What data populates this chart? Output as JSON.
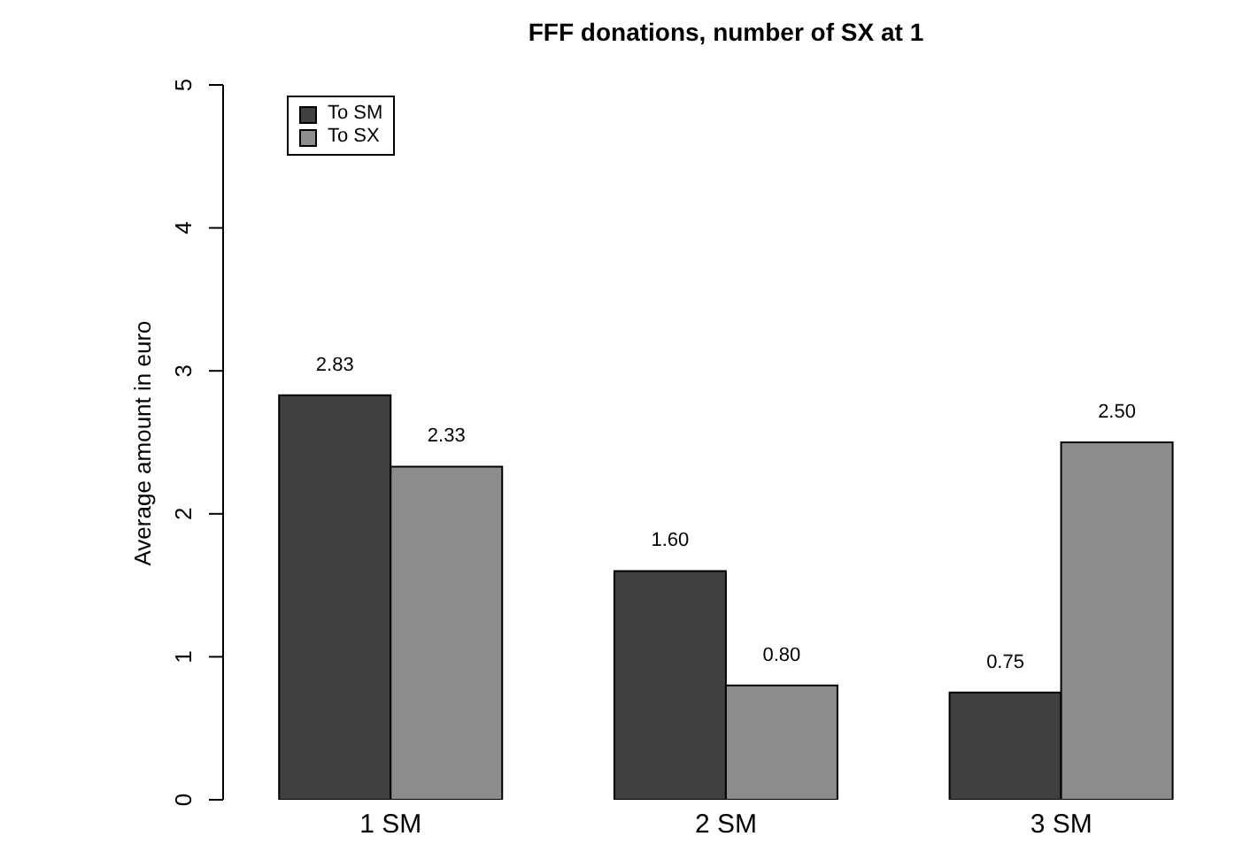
{
  "chart_data": {
    "type": "bar",
    "title": "FFF donations, number of SX at 1",
    "ylabel": "Average amount in euro",
    "categories": [
      "1 SM",
      "2 SM",
      "3 SM"
    ],
    "series": [
      {
        "name": "To SM",
        "color": "#404040",
        "values": [
          2.83,
          1.6,
          0.75
        ],
        "value_labels": [
          "2.83",
          "1.60",
          "0.75"
        ]
      },
      {
        "name": "To SX",
        "color": "#8c8c8c",
        "values": [
          2.33,
          0.8,
          2.5
        ],
        "value_labels": [
          "2.33",
          "0.80",
          "2.50"
        ]
      }
    ],
    "ylim": [
      0,
      5
    ],
    "yticks": [
      0,
      1,
      2,
      3,
      4,
      5
    ],
    "legend": "top left"
  }
}
